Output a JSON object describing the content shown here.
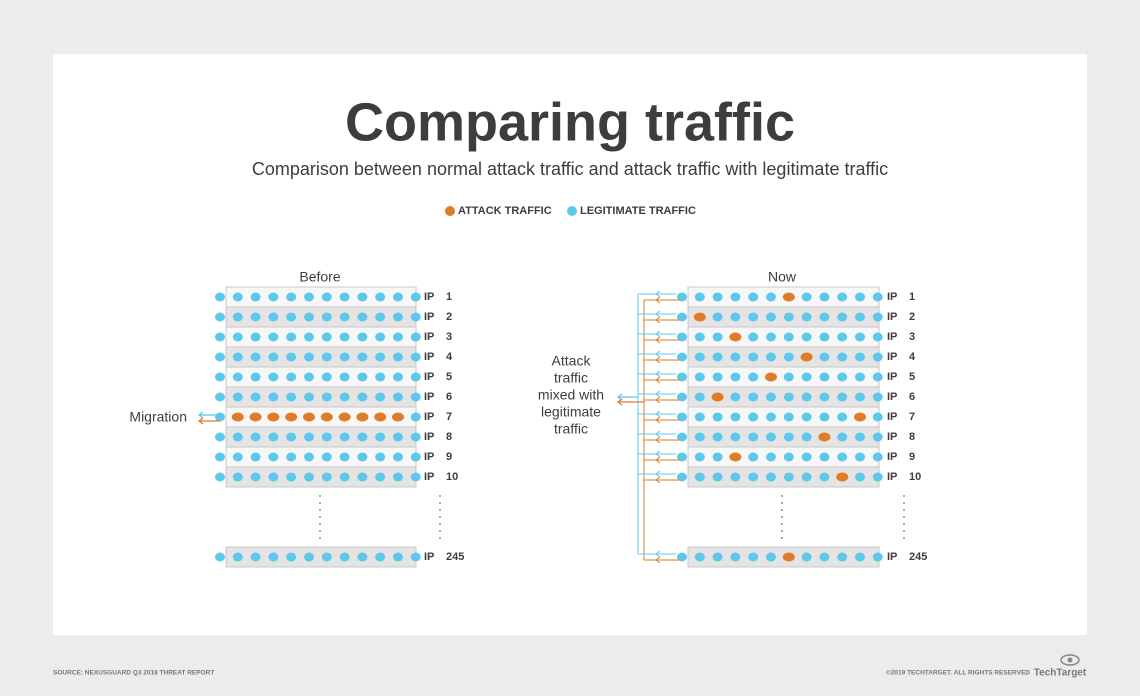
{
  "header": {
    "title": "Comparing traffic",
    "subtitle": "Comparison between normal attack traffic and attack traffic with legitimate traffic"
  },
  "legend": [
    {
      "label": "ATTACK TRAFFIC",
      "color": "#e07b27"
    },
    {
      "label": "LEGITIMATE TRAFFIC",
      "color": "#5bc8ec"
    }
  ],
  "panels": [
    {
      "title": "Before",
      "annotation": [
        "Migration"
      ],
      "rows": [
        {
          "label": "IP",
          "number": 1
        },
        {
          "label": "IP",
          "number": 2
        },
        {
          "label": "IP",
          "number": 3
        },
        {
          "label": "IP",
          "number": 4
        },
        {
          "label": "IP",
          "number": 5
        },
        {
          "label": "IP",
          "number": 6
        },
        {
          "label": "IP",
          "number": 7
        },
        {
          "label": "IP",
          "number": 8
        },
        {
          "label": "IP",
          "number": 9
        },
        {
          "label": "IP",
          "number": 10
        },
        {
          "label": "IP",
          "number": 245
        }
      ]
    },
    {
      "title": "Now",
      "annotation": [
        "Attack",
        "traffic",
        "mixed with",
        "legitimate",
        "traffic"
      ],
      "rows": [
        {
          "label": "IP",
          "number": 1
        },
        {
          "label": "IP",
          "number": 2
        },
        {
          "label": "IP",
          "number": 3
        },
        {
          "label": "IP",
          "number": 4
        },
        {
          "label": "IP",
          "number": 5
        },
        {
          "label": "IP",
          "number": 6
        },
        {
          "label": "IP",
          "number": 7
        },
        {
          "label": "IP",
          "number": 8
        },
        {
          "label": "IP",
          "number": 9
        },
        {
          "label": "IP",
          "number": 10
        },
        {
          "label": "IP",
          "number": 245
        }
      ]
    }
  ],
  "footer": {
    "source": "SOURCE: NEXUSGUARD Q3 2018 THREAT REPORT",
    "copyright": "©2019 TECHTARGET. ALL RIGHTS RESERVED",
    "logo": "TechTarget"
  }
}
